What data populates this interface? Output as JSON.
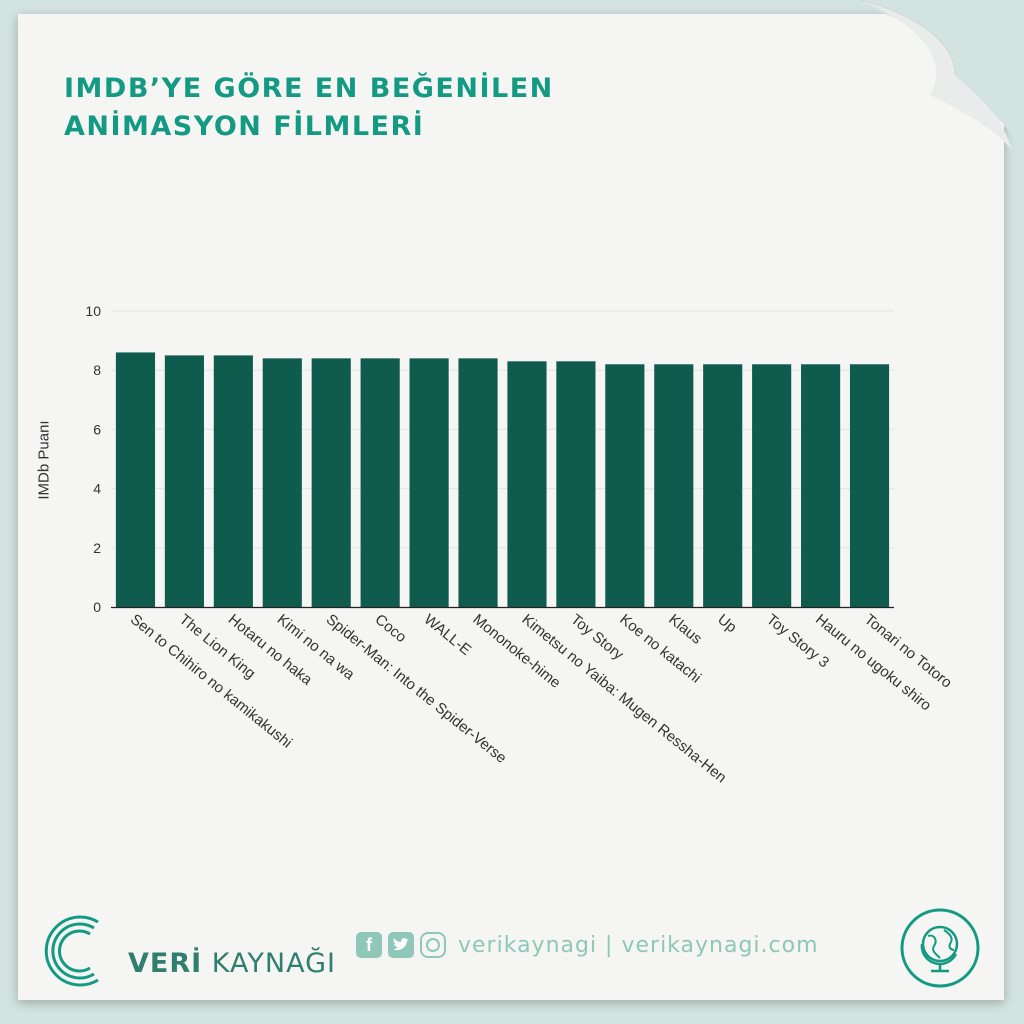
{
  "title_lines": [
    "IMDB’YE GÖRE EN BEĞENİLEN",
    "ANİMASYON FİLMLERİ"
  ],
  "colors": {
    "bar": "#0f5c4f",
    "title": "#149a82",
    "accent_light": "#8fc7b9",
    "background": "#d3e3df",
    "paper": "#f5f5f4"
  },
  "chart_data": {
    "type": "bar",
    "title": "IMDB’YE GÖRE EN BEĞENİLEN ANİMASYON FİLMLERİ",
    "xlabel": "",
    "ylabel": "IMDb Puanı",
    "ylim": [
      0,
      10
    ],
    "yticks": [
      0,
      2,
      4,
      6,
      8,
      10
    ],
    "grid": true,
    "categories": [
      "Sen to Chihiro no kamikakushi",
      "The Lion King",
      "Hotaru no haka",
      "Kimi no na wa",
      "Spider-Man: Into the Spider-Verse",
      "Coco",
      "WALL-E",
      "Mononoke-hime",
      "Kimetsu no Yaiba: Mugen Ressha-Hen",
      "Toy Story",
      "Koe no katachi",
      "Klaus",
      "Up",
      "Toy Story 3",
      "Hauru no ugoku shiro",
      "Tonari no Totoro"
    ],
    "values": [
      8.6,
      8.5,
      8.5,
      8.4,
      8.4,
      8.4,
      8.4,
      8.4,
      8.3,
      8.3,
      8.2,
      8.2,
      8.2,
      8.2,
      8.2,
      8.2
    ]
  },
  "footer": {
    "brand_prefix": "VERİ",
    "brand_suffix": "KAYNAĞI",
    "social_icons": [
      "facebook-icon",
      "twitter-icon",
      "instagram-icon"
    ],
    "social_text": "verikaynagi | verikaynagi.com",
    "badge_icon": "globe-icon"
  }
}
